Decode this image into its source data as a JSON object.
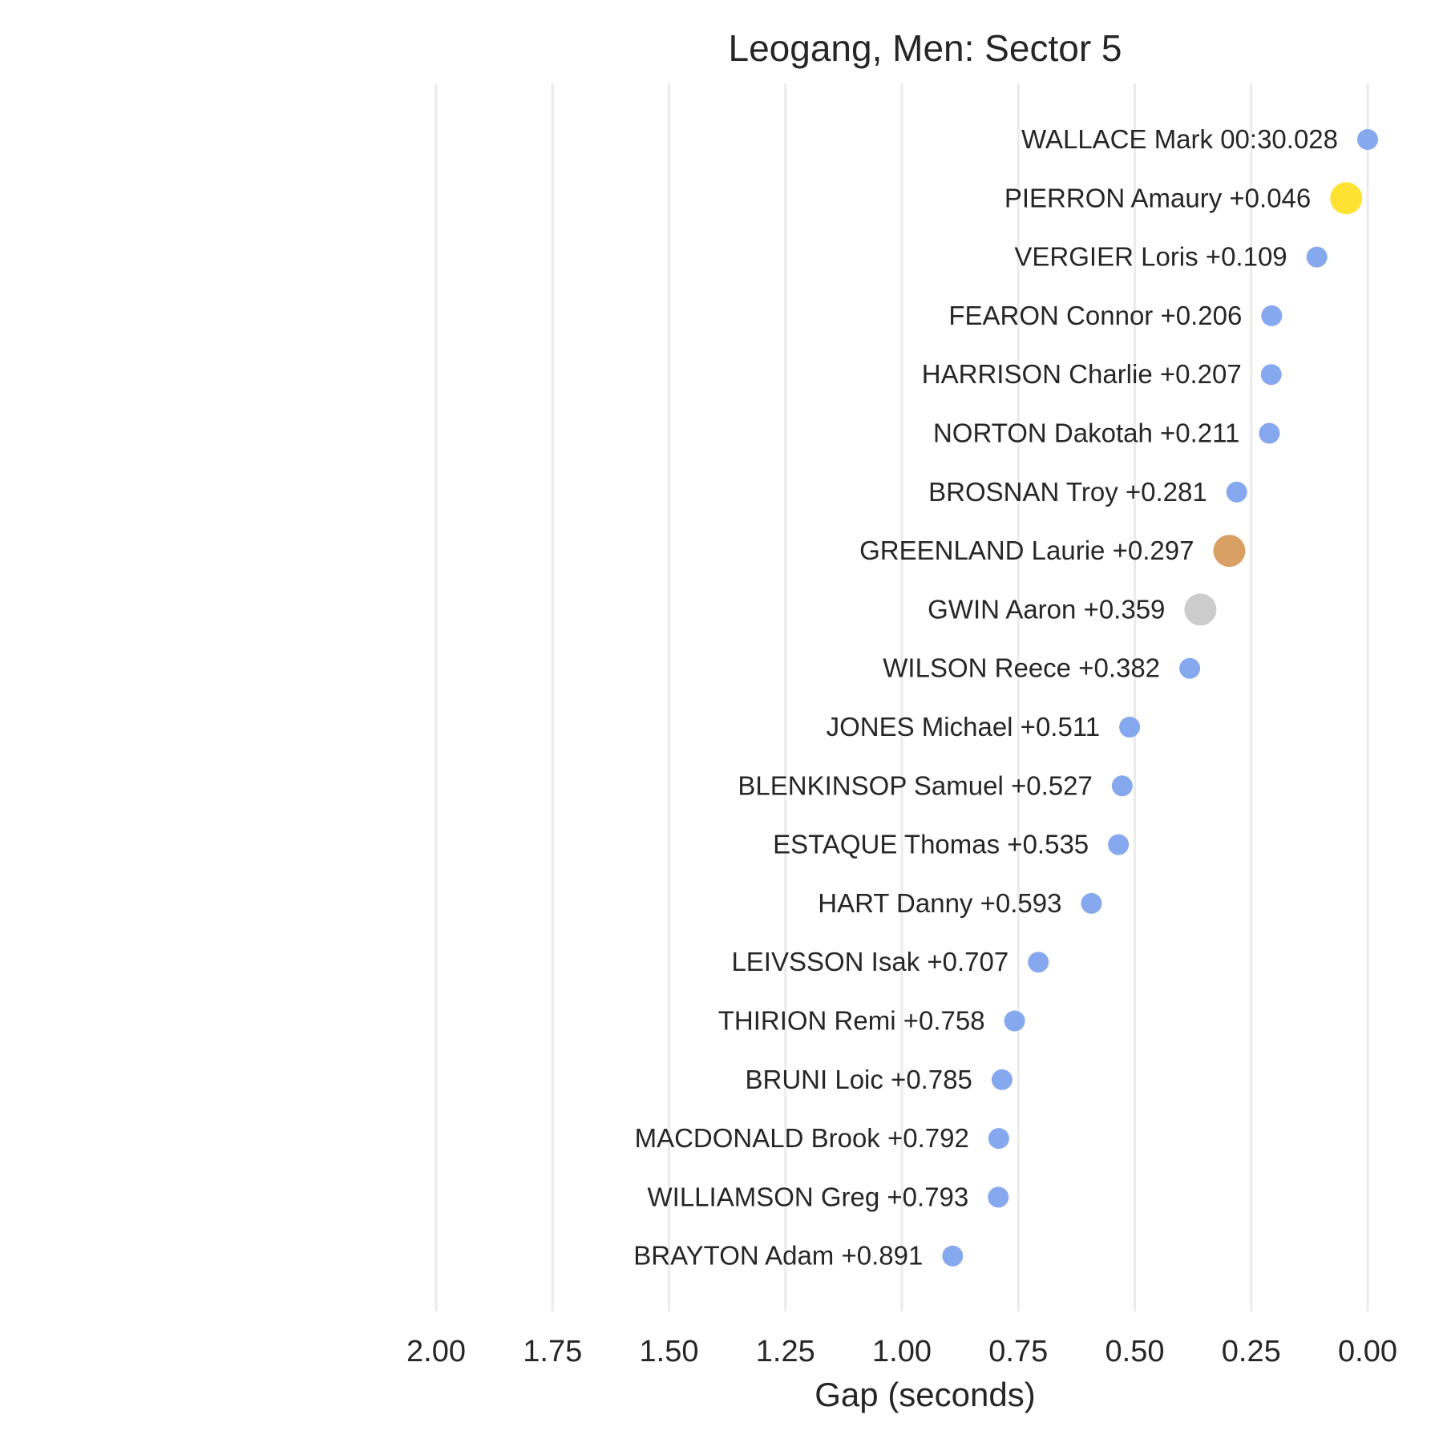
{
  "chart_data": {
    "type": "scatter",
    "title": "Leogang, Men: Sector 5",
    "xlabel": "Gap (seconds)",
    "ylabel": "",
    "xlim": [
      2.0,
      0.0
    ],
    "x_inverted": true,
    "xticks": [
      "2.00",
      "1.75",
      "1.50",
      "1.25",
      "1.00",
      "0.75",
      "0.50",
      "0.25",
      "0.00"
    ],
    "grid": "vertical",
    "colors": {
      "default": "#86a8ee",
      "first": "#fde233",
      "second": "#cccccc",
      "third": "#d9a066"
    },
    "points": [
      {
        "label": "WALLACE Mark 00:30.028",
        "gap": 0.0,
        "highlight": "default"
      },
      {
        "label": "PIERRON Amaury +0.046",
        "gap": 0.046,
        "highlight": "first"
      },
      {
        "label": "VERGIER Loris +0.109",
        "gap": 0.109,
        "highlight": "default"
      },
      {
        "label": "FEARON Connor +0.206",
        "gap": 0.206,
        "highlight": "default"
      },
      {
        "label": "HARRISON Charlie +0.207",
        "gap": 0.207,
        "highlight": "default"
      },
      {
        "label": "NORTON Dakotah +0.211",
        "gap": 0.211,
        "highlight": "default"
      },
      {
        "label": "BROSNAN Troy +0.281",
        "gap": 0.281,
        "highlight": "default"
      },
      {
        "label": "GREENLAND Laurie +0.297",
        "gap": 0.297,
        "highlight": "third"
      },
      {
        "label": "GWIN Aaron +0.359",
        "gap": 0.359,
        "highlight": "second"
      },
      {
        "label": "WILSON Reece +0.382",
        "gap": 0.382,
        "highlight": "default"
      },
      {
        "label": "JONES Michael +0.511",
        "gap": 0.511,
        "highlight": "default"
      },
      {
        "label": "BLENKINSOP Samuel +0.527",
        "gap": 0.527,
        "highlight": "default"
      },
      {
        "label": "ESTAQUE Thomas +0.535",
        "gap": 0.535,
        "highlight": "default"
      },
      {
        "label": "HART Danny +0.593",
        "gap": 0.593,
        "highlight": "default"
      },
      {
        "label": "LEIVSSON Isak +0.707",
        "gap": 0.707,
        "highlight": "default"
      },
      {
        "label": "THIRION Remi +0.758",
        "gap": 0.758,
        "highlight": "default"
      },
      {
        "label": "BRUNI Loic +0.785",
        "gap": 0.785,
        "highlight": "default"
      },
      {
        "label": "MACDONALD Brook +0.792",
        "gap": 0.792,
        "highlight": "default"
      },
      {
        "label": "WILLIAMSON Greg +0.793",
        "gap": 0.793,
        "highlight": "default"
      },
      {
        "label": "BRAYTON Adam +0.891",
        "gap": 0.891,
        "highlight": "default"
      }
    ]
  }
}
